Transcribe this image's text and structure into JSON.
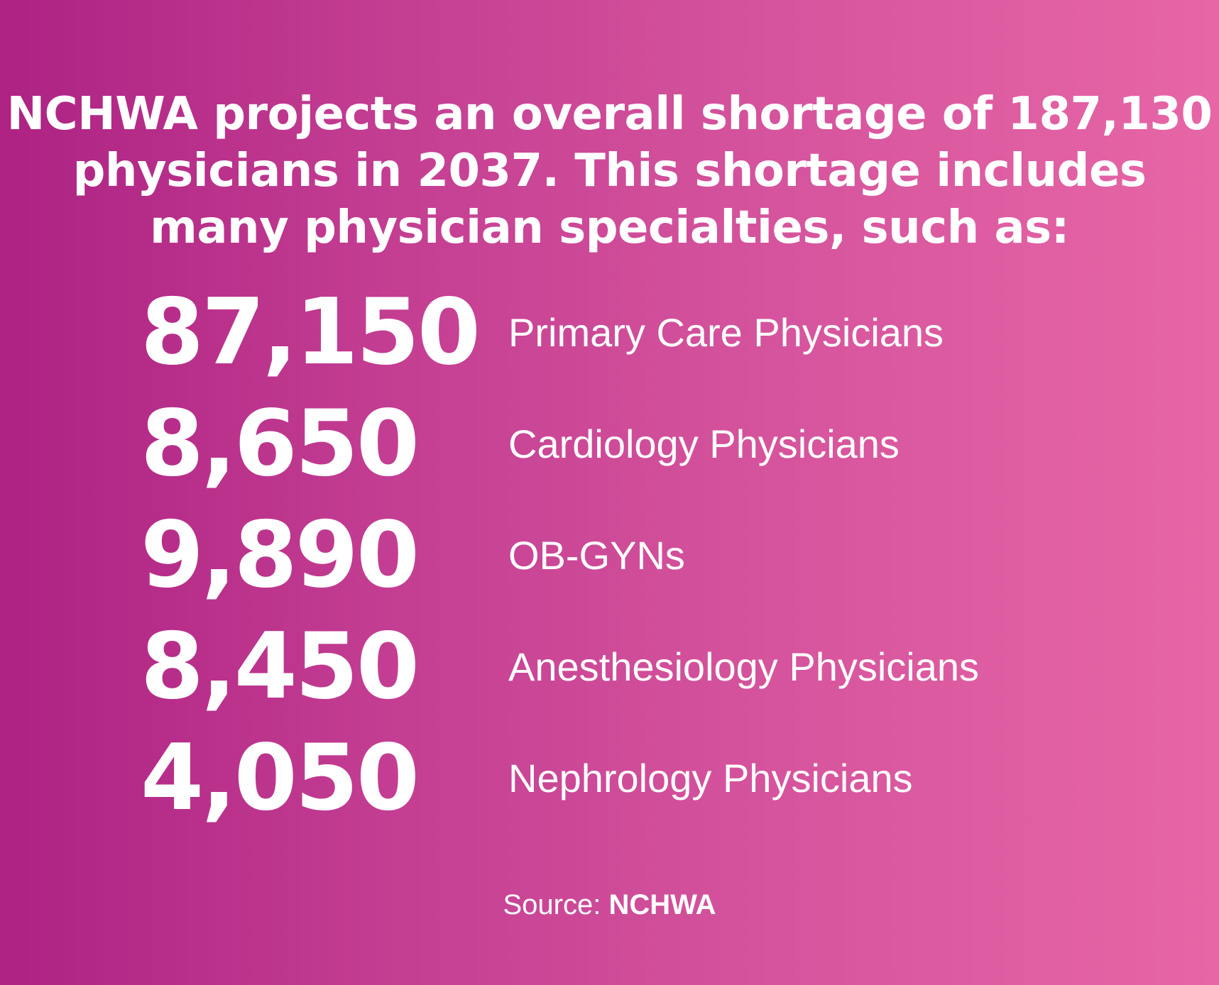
{
  "headline": {
    "line1": "NCHWA projects an overall shortage of 187,130",
    "line2": "physicians in 2037. This shortage includes",
    "line3": "many physician specialties, such as:"
  },
  "stats": [
    {
      "number": "87,150",
      "label": "Primary Care Physicians"
    },
    {
      "number": "8,650",
      "label": "Cardiology Physicians"
    },
    {
      "number": "9,890",
      "label": "OB-GYNs"
    },
    {
      "number": "8,450",
      "label": "Anesthesiology Physicians"
    },
    {
      "number": "4,050",
      "label": "Nephrology Physicians"
    }
  ],
  "source": {
    "prefix": "Source:",
    "name": "NCHWA"
  },
  "colors": {
    "gradient_start": "#ad2283",
    "gradient_end": "#e766a6",
    "text": "#ffffff"
  }
}
